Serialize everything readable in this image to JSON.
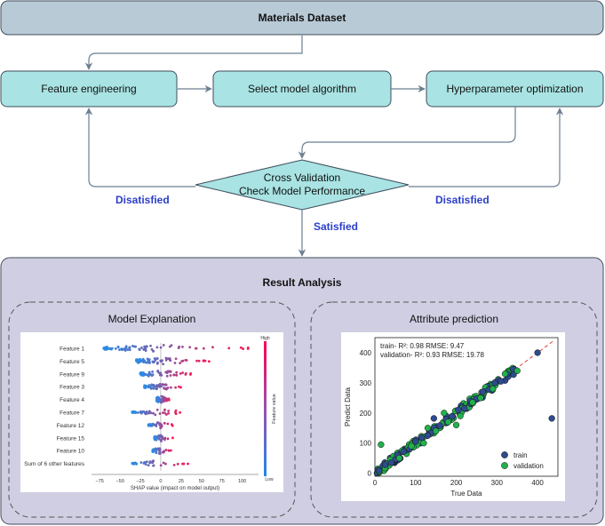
{
  "dataset_label": "Materials Dataset",
  "steps": [
    "Feature engineering",
    "Select model algorithm",
    "Hyperparameter optimization"
  ],
  "cv_lines": [
    "Cross Validation",
    "Check Model Performance"
  ],
  "left_branch_label": "Disatisfied",
  "right_branch_label": "Disatisfied",
  "down_branch_label": "Satisfied",
  "result_title": "Result Analysis",
  "model_explanation_title": "Model Explanation",
  "attribute_prediction_title": "Attribute prediction",
  "colors": {
    "dataset_fill": "#b8cad6",
    "step_fill": "#a9e3e3",
    "result_fill": "#d0cee2",
    "arrow": "#6c7f92",
    "label_blue": "#2b3fc9"
  },
  "chart_data": [
    {
      "type": "scatter",
      "subtype": "shap-beeswarm",
      "features": [
        "Feature 1",
        "Feature 5",
        "Feature 9",
        "Feature 3",
        "Feature 4",
        "Feature 7",
        "Feature 12",
        "Feature 15",
        "Feature 10",
        "Sum of 6 other features"
      ],
      "x_ticks": [
        "−75",
        "−50",
        "−25",
        "0",
        "25",
        "50",
        "75",
        "100"
      ],
      "xlabel": "SHAP value (impact on model output)",
      "xlim": [
        -85,
        120
      ],
      "colorbar_label": "Feature value",
      "colorbar_high": "High",
      "colorbar_low": "Low",
      "spread": [
        [
          -70,
          110
        ],
        [
          -30,
          60
        ],
        [
          -25,
          40
        ],
        [
          -20,
          30
        ],
        [
          -5,
          12
        ],
        [
          -35,
          25
        ],
        [
          -15,
          15
        ],
        [
          -8,
          15
        ],
        [
          -10,
          15
        ],
        [
          -35,
          35
        ]
      ]
    },
    {
      "type": "scatter",
      "xlabel": "True Data",
      "ylabel": "Predict Data",
      "xlim": [
        0,
        450
      ],
      "ylim": [
        -10,
        450
      ],
      "x_ticks": [
        "0",
        "100",
        "200",
        "300",
        "400"
      ],
      "y_ticks": [
        "0",
        "100",
        "200",
        "300",
        "400"
      ],
      "annotation_lines": [
        "train- R²: 0.98  RMSE: 9.47",
        "validation- R²: 0.93  RMSE: 19.78"
      ],
      "series": [
        {
          "name": "train",
          "color": "#2e4b8f",
          "points": [
            [
              10,
              8
            ],
            [
              25,
              28
            ],
            [
              40,
              35
            ],
            [
              55,
              60
            ],
            [
              70,
              72
            ],
            [
              85,
              80
            ],
            [
              100,
              105
            ],
            [
              115,
              118
            ],
            [
              130,
              125
            ],
            [
              145,
              150
            ],
            [
              160,
              158
            ],
            [
              175,
              180
            ],
            [
              190,
              188
            ],
            [
              205,
              210
            ],
            [
              220,
              215
            ],
            [
              235,
              240
            ],
            [
              250,
              248
            ],
            [
              265,
              270
            ],
            [
              280,
              278
            ],
            [
              295,
              300
            ],
            [
              310,
              305
            ],
            [
              325,
              330
            ],
            [
              340,
              345
            ],
            [
              400,
              400
            ],
            [
              435,
              182
            ],
            [
              145,
              182
            ]
          ]
        },
        {
          "name": "validation",
          "color": "#22b14c",
          "points": [
            [
              15,
              95
            ],
            [
              60,
              50
            ],
            [
              90,
              90
            ],
            [
              120,
              100
            ],
            [
              150,
              140
            ],
            [
              180,
              170
            ],
            [
              210,
              190
            ],
            [
              240,
              235
            ],
            [
              260,
              250
            ],
            [
              290,
              280
            ],
            [
              320,
              330
            ],
            [
              350,
              340
            ],
            [
              200,
              160
            ],
            [
              170,
              200
            ],
            [
              130,
              150
            ]
          ]
        }
      ]
    }
  ]
}
